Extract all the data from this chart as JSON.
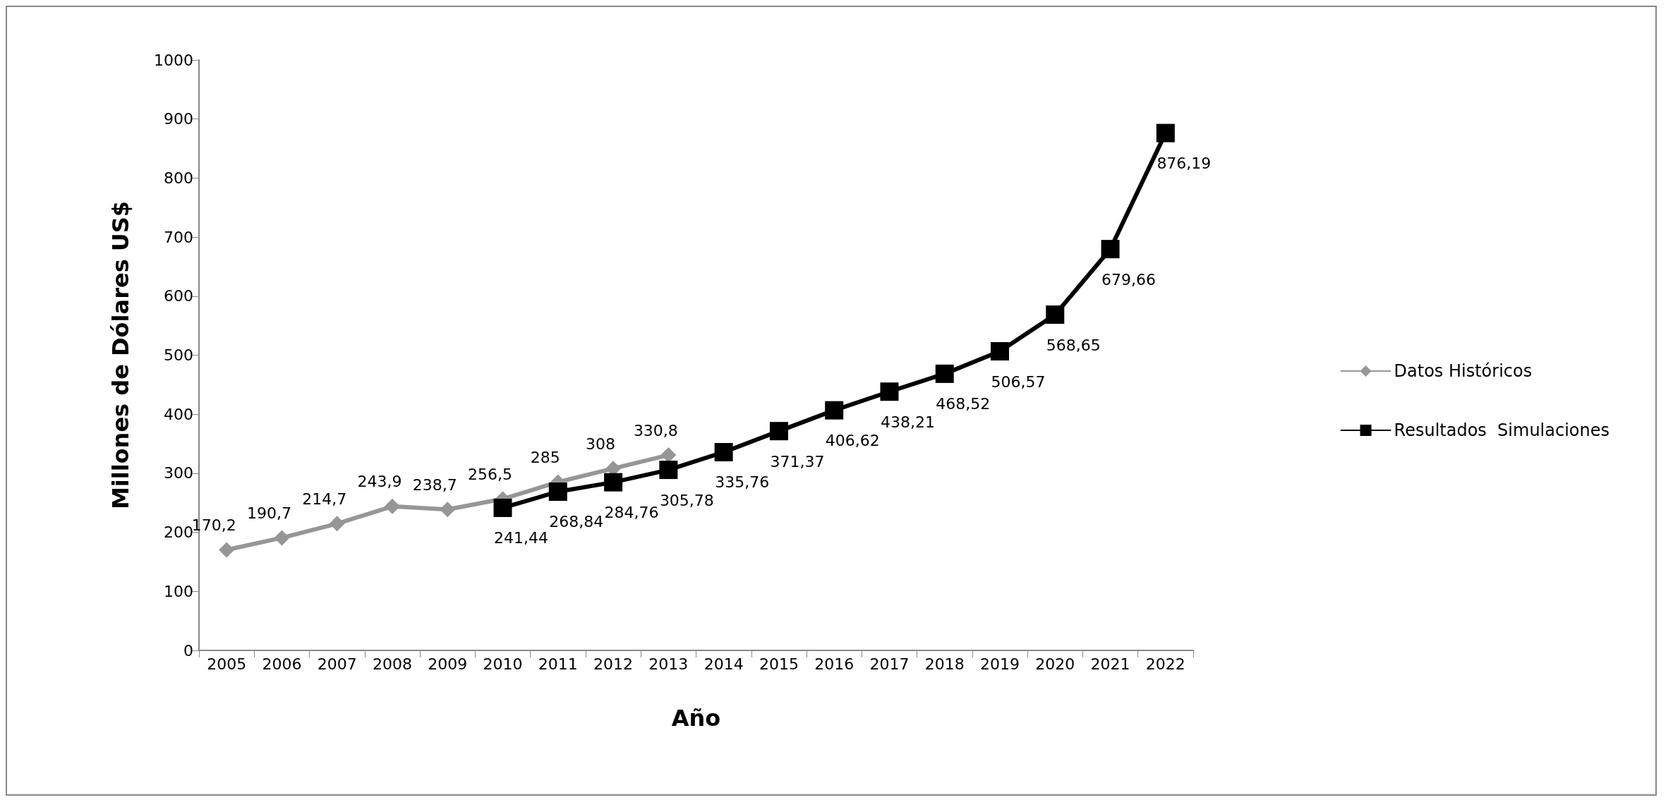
{
  "chart_data": {
    "type": "line",
    "xlabel": "Año",
    "ylabel": "Millones de Dólares US$",
    "categories": [
      "2005",
      "2006",
      "2007",
      "2008",
      "2009",
      "2010",
      "2011",
      "2012",
      "2013",
      "2014",
      "2015",
      "2016",
      "2017",
      "2018",
      "2019",
      "2020",
      "2021",
      "2022"
    ],
    "series": [
      {
        "name": "Datos Históricos",
        "color": "#969696",
        "marker": "diamond",
        "values": [
          170.2,
          190.7,
          214.7,
          243.9,
          238.7,
          256.5,
          285,
          308,
          330.8,
          null,
          null,
          null,
          null,
          null,
          null,
          null,
          null,
          null
        ],
        "value_labels": [
          "170,2",
          "190,7",
          "214,7",
          "243,9",
          "238,7",
          "256,5",
          "285",
          "308",
          "330,8",
          null,
          null,
          null,
          null,
          null,
          null,
          null,
          null,
          null
        ]
      },
      {
        "name": "Resultados  Simulaciones",
        "color": "#000000",
        "marker": "square",
        "values": [
          null,
          null,
          null,
          null,
          null,
          241.44,
          268.84,
          284.76,
          305.78,
          335.76,
          371.37,
          406.62,
          438.21,
          468.52,
          506.57,
          568.65,
          679.66,
          876.19
        ],
        "value_labels": [
          null,
          null,
          null,
          null,
          null,
          "241,44",
          "268,84",
          "284,76",
          "305,78",
          "335,76",
          "371,37",
          "406,62",
          "438,21",
          "468,52",
          "506,57",
          "568,65",
          "679,66",
          "876,19"
        ]
      }
    ],
    "ylim": [
      0,
      1000
    ],
    "yticks": [
      0,
      100,
      200,
      300,
      400,
      500,
      600,
      700,
      800,
      900,
      1000
    ],
    "grid": false,
    "legend": "right",
    "line_style": "solid"
  }
}
